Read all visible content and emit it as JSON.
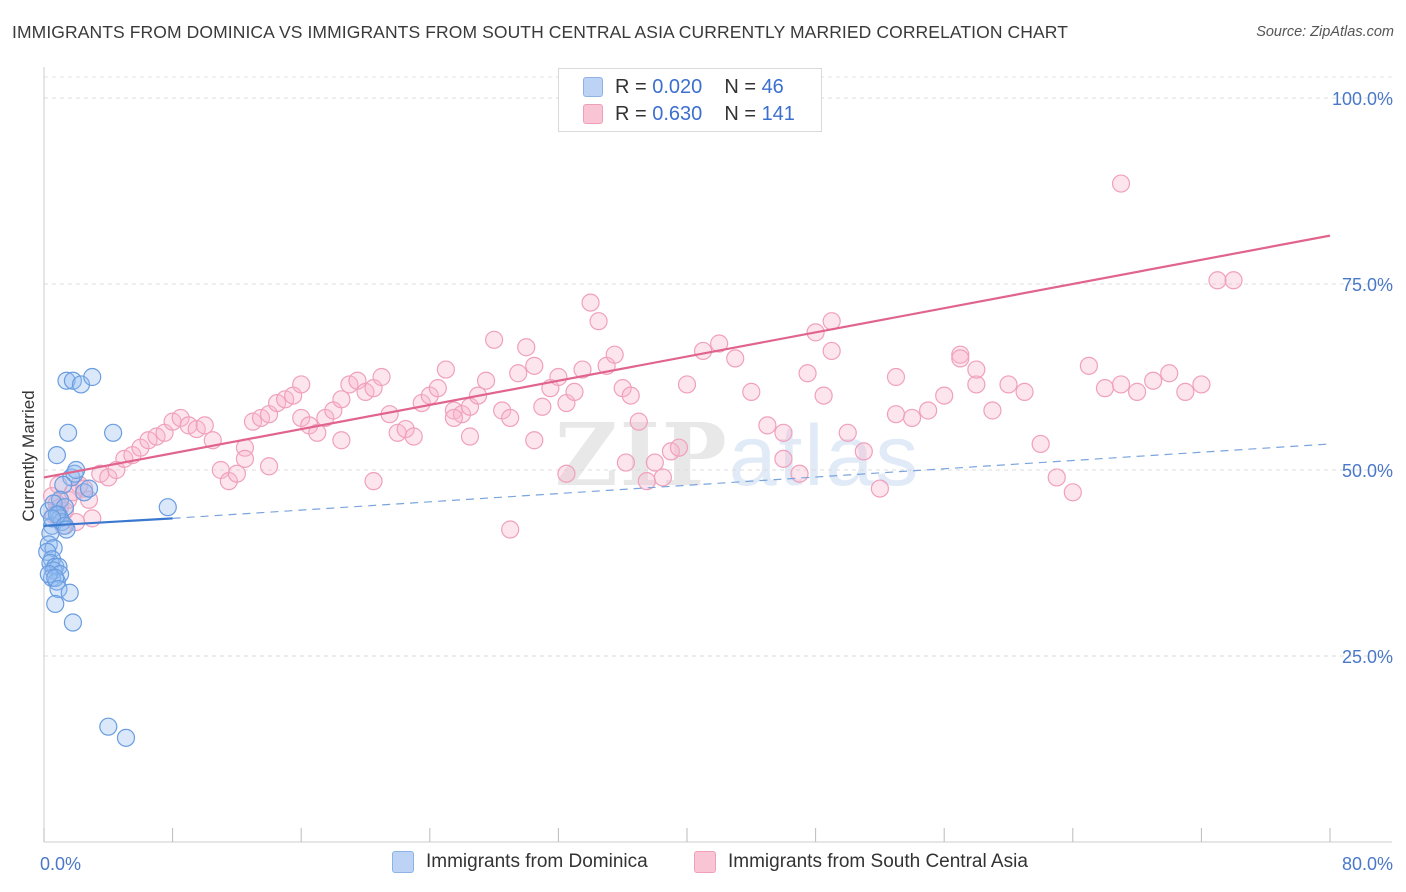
{
  "title": "IMMIGRANTS FROM DOMINICA VS IMMIGRANTS FROM SOUTH CENTRAL ASIA CURRENTLY MARRIED CORRELATION CHART",
  "source": "Source: ZipAtlas.com",
  "watermark": {
    "zip": "ZIP",
    "atlas": "atlas"
  },
  "legend": {
    "series1": {
      "r_label": "R = ",
      "r_value": "0.020",
      "n_label": "N = ",
      "n_value": "46"
    },
    "series2": {
      "r_label": "R = ",
      "r_value": "0.630",
      "n_label": "N = ",
      "n_value": "141"
    }
  },
  "chart_data": {
    "type": "scatter",
    "title": "IMMIGRANTS FROM DOMINICA VS IMMIGRANTS FROM SOUTH CENTRAL ASIA CURRENTLY MARRIED CORRELATION CHART",
    "xlabel": "",
    "ylabel": "Currently Married",
    "xlim": [
      0,
      80
    ],
    "ylim": [
      0,
      105
    ],
    "x_tick_labels": [
      "0.0%",
      "80.0%"
    ],
    "y_ticks": [
      25,
      50,
      75,
      100
    ],
    "y_tick_labels": [
      "25.0%",
      "50.0%",
      "75.0%",
      "100.0%"
    ],
    "grid": true,
    "legend_position": "top-center",
    "colors": {
      "dominica": "#6a9de0",
      "dominica_line": "#3a78d0",
      "sca": "#f0a0bc",
      "sca_line": "#e0648c"
    },
    "series": [
      {
        "name": "Immigrants from Dominica",
        "R": 0.02,
        "N": 46,
        "trend": {
          "x0": 0,
          "y0": 42.5,
          "x1": 8,
          "y1": 43.5,
          "dash_to_x": 80,
          "dash_to_y": 53.5
        },
        "points": [
          [
            0.3,
            44.5
          ],
          [
            0.5,
            42.5
          ],
          [
            0.4,
            41.5
          ],
          [
            0.3,
            40.0
          ],
          [
            0.6,
            39.5
          ],
          [
            0.2,
            39.0
          ],
          [
            0.5,
            38.0
          ],
          [
            0.4,
            37.5
          ],
          [
            0.7,
            37.0
          ],
          [
            0.9,
            37.0
          ],
          [
            0.6,
            36.5
          ],
          [
            1.0,
            36.0
          ],
          [
            0.5,
            35.5
          ],
          [
            0.8,
            35.0
          ],
          [
            0.3,
            36.0
          ],
          [
            0.7,
            35.5
          ],
          [
            0.9,
            34.0
          ],
          [
            1.6,
            33.5
          ],
          [
            0.7,
            32.0
          ],
          [
            1.8,
            29.5
          ],
          [
            1.4,
            62.0
          ],
          [
            1.8,
            62.0
          ],
          [
            2.3,
            61.5
          ],
          [
            3.0,
            62.5
          ],
          [
            1.5,
            55.0
          ],
          [
            4.3,
            55.0
          ],
          [
            0.8,
            52.0
          ],
          [
            1.7,
            49.0
          ],
          [
            1.9,
            49.5
          ],
          [
            2.0,
            50.0
          ],
          [
            1.2,
            48.0
          ],
          [
            2.5,
            47.0
          ],
          [
            1.0,
            46.0
          ],
          [
            0.6,
            45.5
          ],
          [
            1.3,
            45.0
          ],
          [
            0.9,
            44.0
          ],
          [
            1.0,
            43.5
          ],
          [
            1.1,
            43.0
          ],
          [
            0.8,
            44.0
          ],
          [
            0.5,
            43.5
          ],
          [
            1.3,
            42.5
          ],
          [
            1.4,
            42.0
          ],
          [
            7.7,
            45.0
          ],
          [
            2.8,
            47.5
          ],
          [
            4.0,
            15.5
          ],
          [
            5.1,
            14.0
          ]
        ]
      },
      {
        "name": "Immigrants from South Central Asia",
        "R": 0.63,
        "N": 141,
        "trend": {
          "x0": 0,
          "y0": 49.0,
          "x1": 80,
          "y1": 81.5
        },
        "points": [
          [
            0.5,
            46.5
          ],
          [
            0.8,
            45.5
          ],
          [
            1.0,
            45.0
          ],
          [
            1.3,
            44.5
          ],
          [
            0.6,
            44.0
          ],
          [
            1.5,
            46.0
          ],
          [
            1.8,
            47.0
          ],
          [
            2.2,
            48.0
          ],
          [
            2.5,
            47.5
          ],
          [
            2.8,
            46.0
          ],
          [
            3.0,
            43.5
          ],
          [
            3.5,
            49.5
          ],
          [
            1.2,
            42.5
          ],
          [
            2.0,
            43.0
          ],
          [
            0.9,
            48.0
          ],
          [
            4.0,
            49.0
          ],
          [
            4.5,
            50.0
          ],
          [
            5.0,
            51.5
          ],
          [
            5.5,
            52.0
          ],
          [
            6.0,
            53.0
          ],
          [
            6.5,
            54.0
          ],
          [
            7.0,
            54.5
          ],
          [
            7.5,
            55.0
          ],
          [
            8.0,
            56.5
          ],
          [
            8.5,
            57.0
          ],
          [
            9.0,
            56.0
          ],
          [
            9.5,
            55.5
          ],
          [
            10.0,
            56.0
          ],
          [
            10.5,
            54.0
          ],
          [
            11.0,
            50.0
          ],
          [
            11.5,
            48.5
          ],
          [
            12.0,
            49.5
          ],
          [
            12.5,
            53.0
          ],
          [
            13.0,
            56.5
          ],
          [
            13.5,
            57.0
          ],
          [
            14.0,
            57.5
          ],
          [
            14.5,
            59.0
          ],
          [
            15.0,
            59.5
          ],
          [
            15.5,
            60.0
          ],
          [
            16.0,
            57.0
          ],
          [
            16.5,
            56.0
          ],
          [
            17.0,
            55.0
          ],
          [
            17.5,
            57.0
          ],
          [
            18.0,
            58.0
          ],
          [
            18.5,
            59.5
          ],
          [
            19.0,
            61.5
          ],
          [
            19.5,
            62.0
          ],
          [
            20.0,
            60.5
          ],
          [
            20.5,
            61.0
          ],
          [
            21.0,
            62.5
          ],
          [
            21.5,
            57.5
          ],
          [
            22.0,
            55.0
          ],
          [
            22.5,
            55.5
          ],
          [
            23.0,
            54.5
          ],
          [
            23.5,
            59.0
          ],
          [
            24.0,
            60.0
          ],
          [
            24.5,
            61.0
          ],
          [
            25.0,
            63.5
          ],
          [
            25.5,
            58.0
          ],
          [
            26.0,
            57.5
          ],
          [
            26.5,
            58.5
          ],
          [
            27.0,
            60.0
          ],
          [
            27.5,
            62.0
          ],
          [
            28.0,
            67.5
          ],
          [
            28.5,
            58.0
          ],
          [
            29.0,
            57.0
          ],
          [
            29.5,
            63.0
          ],
          [
            30.0,
            66.5
          ],
          [
            30.5,
            64.0
          ],
          [
            31.0,
            58.5
          ],
          [
            31.5,
            61.0
          ],
          [
            32.0,
            62.5
          ],
          [
            32.5,
            59.0
          ],
          [
            33.0,
            60.5
          ],
          [
            33.5,
            63.5
          ],
          [
            34.0,
            72.5
          ],
          [
            34.5,
            70.0
          ],
          [
            35.0,
            64.0
          ],
          [
            35.5,
            65.5
          ],
          [
            36.0,
            61.0
          ],
          [
            36.5,
            60.0
          ],
          [
            37.0,
            56.5
          ],
          [
            38.0,
            51.0
          ],
          [
            38.5,
            49.0
          ],
          [
            39.0,
            52.5
          ],
          [
            40.0,
            61.5
          ],
          [
            41.0,
            66.0
          ],
          [
            42.0,
            67.0
          ],
          [
            43.0,
            65.0
          ],
          [
            44.0,
            60.5
          ],
          [
            45.0,
            56.0
          ],
          [
            46.0,
            55.0
          ],
          [
            47.0,
            49.5
          ],
          [
            48.0,
            68.5
          ],
          [
            49.0,
            70.0
          ],
          [
            50.0,
            55.0
          ],
          [
            51.0,
            52.5
          ],
          [
            52.0,
            47.5
          ],
          [
            53.0,
            57.5
          ],
          [
            54.0,
            57.0
          ],
          [
            55.0,
            58.0
          ],
          [
            56.0,
            60.0
          ],
          [
            57.0,
            65.5
          ],
          [
            58.0,
            61.5
          ],
          [
            59.0,
            58.0
          ],
          [
            60.0,
            61.5
          ],
          [
            61.0,
            60.5
          ],
          [
            62.0,
            53.5
          ],
          [
            63.0,
            49.0
          ],
          [
            64.0,
            47.0
          ],
          [
            65.0,
            64.0
          ],
          [
            66.0,
            61.0
          ],
          [
            67.0,
            61.5
          ],
          [
            68.0,
            60.5
          ],
          [
            69.0,
            62.0
          ],
          [
            70.0,
            63.0
          ],
          [
            71.0,
            60.5
          ],
          [
            72.0,
            61.5
          ],
          [
            73.0,
            75.5
          ],
          [
            74.0,
            75.5
          ],
          [
            36.2,
            51.0
          ],
          [
            25.5,
            57.0
          ],
          [
            32.5,
            49.5
          ],
          [
            37.5,
            48.5
          ],
          [
            26.5,
            54.5
          ],
          [
            30.5,
            54.0
          ],
          [
            39.5,
            53.0
          ],
          [
            29.0,
            42.0
          ],
          [
            18.5,
            54.0
          ],
          [
            46.0,
            51.5
          ],
          [
            47.5,
            63.0
          ],
          [
            48.5,
            60.0
          ],
          [
            49.0,
            66.0
          ],
          [
            53.0,
            62.5
          ],
          [
            57.0,
            65.0
          ],
          [
            58.0,
            63.5
          ],
          [
            20.5,
            48.5
          ],
          [
            12.5,
            51.5
          ],
          [
            14.0,
            50.5
          ],
          [
            16.0,
            61.5
          ],
          [
            67.0,
            88.5
          ]
        ]
      }
    ]
  }
}
